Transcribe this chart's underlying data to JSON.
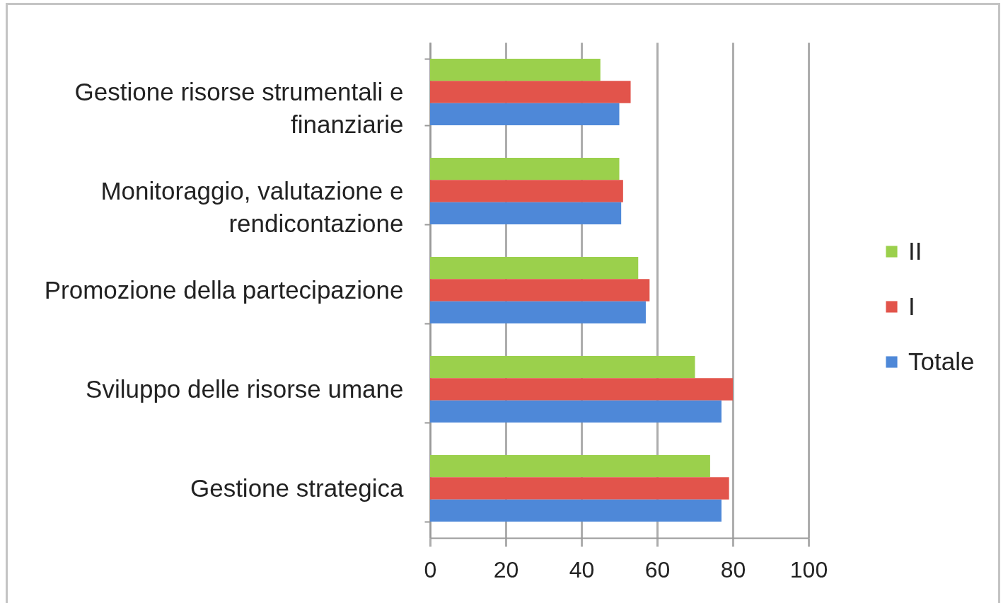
{
  "chart_data": {
    "type": "bar",
    "orientation": "horizontal",
    "categories": [
      "Gestione risorse strumentali e finanziarie",
      "Monitoraggio, valutazione e rendicontazione",
      "Promozione della partecipazione",
      "Sviluppo delle risorse umane",
      "Gestione strategica"
    ],
    "series": [
      {
        "name": "II",
        "color": "#9bd04c",
        "values": [
          45,
          50,
          55,
          70,
          74
        ]
      },
      {
        "name": "I",
        "color": "#e2544b",
        "values": [
          53,
          51,
          58,
          80,
          79
        ]
      },
      {
        "name": "Totale",
        "color": "#4e88d8",
        "values": [
          50,
          50.5,
          57,
          77,
          77
        ]
      }
    ],
    "xlim": [
      0,
      100
    ],
    "xticks": [
      0,
      20,
      40,
      60,
      80,
      100
    ],
    "grid": "x",
    "legend": "right"
  }
}
